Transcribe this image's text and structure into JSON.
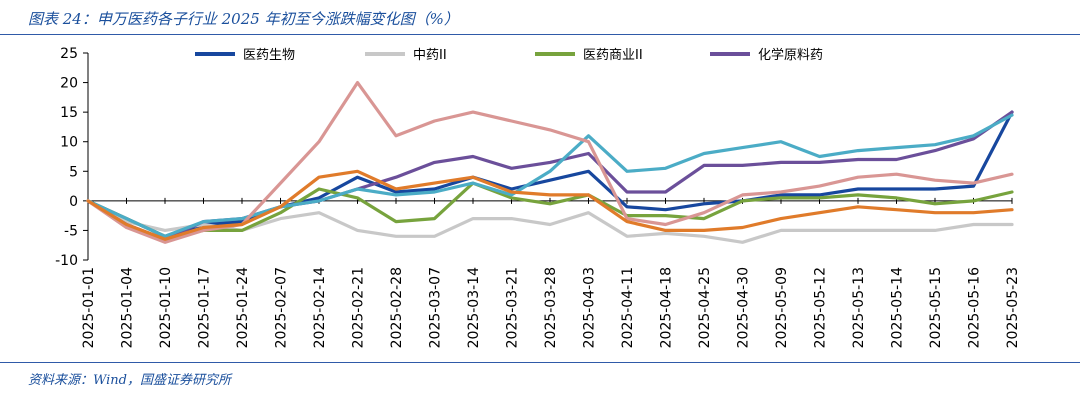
{
  "page": {
    "title": "图表 24：申万医药各子行业 2025 年初至今涨跌幅变化图（%）",
    "source": "资料来源：Wind，国盛证券研究所"
  },
  "chart_data": {
    "type": "line",
    "ylim": [
      -10,
      25
    ],
    "yticks": [
      -10,
      -5,
      0,
      5,
      10,
      15,
      20,
      25
    ],
    "categories": [
      "2025-01-01",
      "2025-01-04",
      "2025-01-10",
      "2025-01-17",
      "2025-01-24",
      "2025-02-07",
      "2025-02-14",
      "2025-02-21",
      "2025-02-28",
      "2025-03-07",
      "2025-03-14",
      "2025-03-21",
      "2025-03-28",
      "2025-04-03",
      "2025-04-11",
      "2025-04-18",
      "2025-04-25",
      "2025-04-30",
      "2025-05-09",
      "2025-05-12",
      "2025-05-13",
      "2025-05-14",
      "2025-05-15",
      "2025-05-16",
      "2025-05-23"
    ],
    "series": [
      {
        "name": "医药生物",
        "color": "#17479e",
        "legend": true,
        "values": [
          0,
          -3,
          -6,
          -4,
          -3.5,
          -1,
          0.5,
          4,
          1.5,
          2,
          4,
          2,
          3.5,
          5,
          -1,
          -1.5,
          -0.5,
          0,
          1,
          1,
          2,
          2,
          2,
          2.5,
          15
        ]
      },
      {
        "name": "中药II",
        "color": "#c8c8c8",
        "legend": true,
        "values": [
          0,
          -3.5,
          -5,
          -4,
          -5,
          -3,
          -2,
          -5,
          -6,
          -6,
          -3,
          -3,
          -4,
          -2,
          -6,
          -5.5,
          -6,
          -7,
          -5,
          -5,
          -5,
          -5,
          -5,
          -4,
          -4
        ]
      },
      {
        "name": "医药商业II",
        "color": "#77a33d",
        "legend": true,
        "values": [
          0,
          -3,
          -6,
          -5,
          -5,
          -2,
          2,
          0.5,
          -3.5,
          -3,
          3,
          0.5,
          -0.5,
          1,
          -2.5,
          -2.5,
          -3,
          0,
          0.5,
          0.5,
          1,
          0.5,
          -0.5,
          0,
          1.5
        ]
      },
      {
        "name": "化学原料药",
        "color": "#6b4f9a",
        "legend": true,
        "values": [
          0,
          -4,
          -6.5,
          -3.5,
          -3,
          -1,
          0,
          2,
          4,
          6.5,
          7.5,
          5.5,
          6.5,
          8,
          1.5,
          1.5,
          6,
          6,
          6.5,
          6.5,
          7,
          7,
          8.5,
          10.5,
          15
        ]
      },
      {
        "name": "series-teal",
        "color": "#4bacc6",
        "legend": false,
        "values": [
          0,
          -3,
          -6,
          -3.5,
          -3,
          -1,
          0,
          2,
          1,
          1.5,
          3,
          1,
          5,
          11,
          5,
          5.5,
          8,
          9,
          10,
          7.5,
          8.5,
          9,
          9.5,
          11,
          14.5
        ]
      },
      {
        "name": "series-salmon",
        "color": "#d99694",
        "legend": false,
        "values": [
          0,
          -4.5,
          -7,
          -5,
          -4,
          3,
          10,
          20,
          11,
          13.5,
          15,
          13.5,
          12,
          10,
          -3,
          -4,
          -2,
          1,
          1.5,
          2.5,
          4,
          4.5,
          3.5,
          3,
          4.5
        ]
      },
      {
        "name": "series-orange",
        "color": "#e07b2a",
        "legend": false,
        "values": [
          0,
          -4,
          -6.5,
          -4.5,
          -4,
          -1,
          4,
          5,
          2,
          3,
          4,
          1.5,
          1,
          1,
          -3.5,
          -5,
          -5,
          -4.5,
          -3,
          -2,
          -1,
          -1.5,
          -2,
          -2,
          -1.5
        ]
      }
    ]
  }
}
